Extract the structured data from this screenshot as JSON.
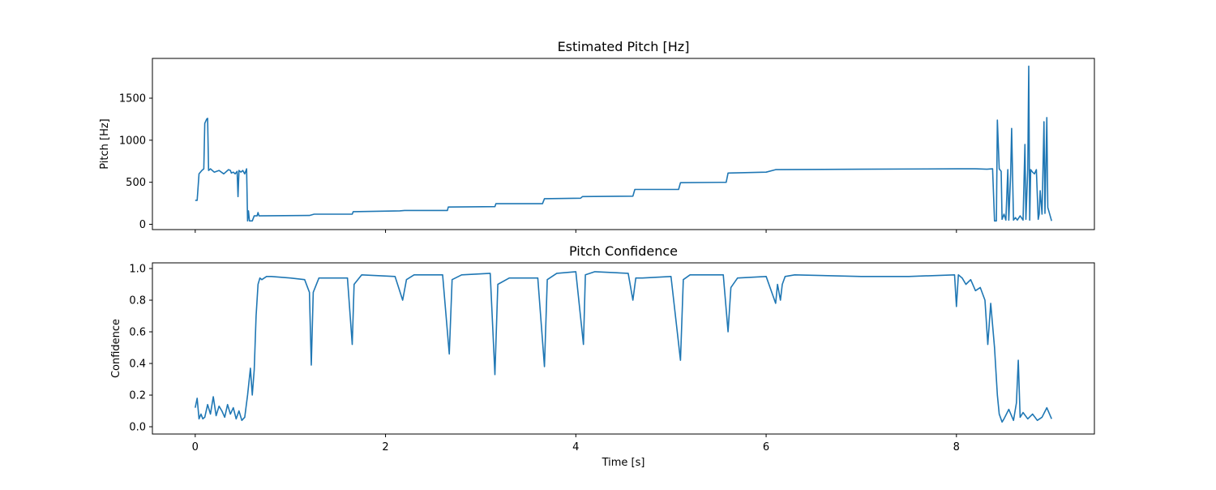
{
  "chart_data": [
    {
      "type": "line",
      "title": "Estimated Pitch [Hz]",
      "y_label": "Pitch [Hz]",
      "x": [
        0,
        0.02,
        0.04,
        0.07,
        0.09,
        0.1,
        0.12,
        0.13,
        0.14,
        0.16,
        0.2,
        0.25,
        0.3,
        0.35,
        0.37,
        0.38,
        0.4,
        0.42,
        0.44,
        0.45,
        0.46,
        0.48,
        0.5,
        0.52,
        0.54,
        0.55,
        0.56,
        0.57,
        0.6,
        0.62,
        0.65,
        0.66,
        0.67,
        1.2,
        1.25,
        1.65,
        1.66,
        2.15,
        2.2,
        2.65,
        2.66,
        3.15,
        3.16,
        3.65,
        3.67,
        4.05,
        4.07,
        4.6,
        4.62,
        5.08,
        5.1,
        5.58,
        5.6,
        6.0,
        6.1,
        7.0,
        8.0,
        8.2,
        8.32,
        8.38,
        8.4,
        8.42,
        8.43,
        8.45,
        8.47,
        8.48,
        8.5,
        8.52,
        8.54,
        8.55,
        8.57,
        8.58,
        8.6,
        8.62,
        8.64,
        8.67,
        8.7,
        8.72,
        8.73,
        8.75,
        8.76,
        8.77,
        8.78,
        8.8,
        8.82,
        8.84,
        8.86,
        8.87,
        8.88,
        8.9,
        8.92,
        8.93,
        8.95,
        8.96,
        9.0
      ],
      "series": [
        {
          "name": "pitch",
          "color": "#1f77b4",
          "values": [
            285,
            285,
            600,
            640,
            660,
            1200,
            1250,
            1260,
            640,
            660,
            620,
            640,
            600,
            650,
            640,
            610,
            620,
            600,
            630,
            330,
            640,
            620,
            640,
            600,
            660,
            40,
            160,
            40,
            40,
            100,
            100,
            140,
            100,
            105,
            120,
            120,
            150,
            160,
            165,
            165,
            205,
            210,
            245,
            245,
            305,
            310,
            330,
            335,
            415,
            415,
            495,
            500,
            610,
            620,
            650,
            655,
            660,
            660,
            655,
            660,
            40,
            40,
            1240,
            660,
            630,
            60,
            120,
            50,
            650,
            50,
            600,
            1140,
            50,
            80,
            50,
            100,
            50,
            950,
            60,
            650,
            1880,
            50,
            650,
            620,
            600,
            650,
            60,
            120,
            400,
            120,
            1220,
            130,
            1270,
            200,
            40
          ]
        }
      ],
      "xlim": [
        -0.45,
        9.45
      ],
      "xticks": [
        0,
        2,
        4,
        6,
        8
      ],
      "ylim": [
        -63,
        1973
      ],
      "yticks": [
        0,
        500,
        1000,
        1500
      ]
    },
    {
      "type": "line",
      "title": "Pitch Confidence",
      "y_label": "Confidence",
      "x_label": "Time [s]",
      "x": [
        0,
        0.02,
        0.04,
        0.06,
        0.08,
        0.1,
        0.13,
        0.16,
        0.19,
        0.22,
        0.25,
        0.28,
        0.31,
        0.34,
        0.37,
        0.4,
        0.43,
        0.46,
        0.49,
        0.52,
        0.55,
        0.58,
        0.6,
        0.62,
        0.64,
        0.66,
        0.68,
        0.7,
        0.75,
        0.8,
        1.0,
        1.15,
        1.2,
        1.22,
        1.24,
        1.3,
        1.4,
        1.6,
        1.65,
        1.67,
        1.75,
        2.1,
        2.18,
        2.22,
        2.3,
        2.6,
        2.67,
        2.7,
        2.8,
        3.1,
        3.15,
        3.18,
        3.3,
        3.6,
        3.67,
        3.7,
        3.8,
        4.0,
        4.08,
        4.1,
        4.2,
        4.55,
        4.6,
        4.63,
        4.7,
        5.0,
        5.1,
        5.13,
        5.2,
        5.55,
        5.6,
        5.63,
        5.7,
        6.0,
        6.1,
        6.12,
        6.15,
        6.17,
        6.2,
        6.3,
        7.0,
        7.5,
        7.98,
        8.0,
        8.02,
        8.06,
        8.1,
        8.15,
        8.2,
        8.25,
        8.3,
        8.33,
        8.36,
        8.4,
        8.43,
        8.45,
        8.48,
        8.5,
        8.55,
        8.6,
        8.63,
        8.65,
        8.67,
        8.7,
        8.75,
        8.8,
        8.85,
        8.9,
        8.95,
        9.0
      ],
      "series": [
        {
          "name": "confidence",
          "color": "#1f77b4",
          "values": [
            0.12,
            0.18,
            0.05,
            0.08,
            0.05,
            0.06,
            0.14,
            0.08,
            0.19,
            0.07,
            0.13,
            0.1,
            0.06,
            0.14,
            0.08,
            0.12,
            0.05,
            0.1,
            0.04,
            0.06,
            0.2,
            0.37,
            0.2,
            0.36,
            0.7,
            0.9,
            0.94,
            0.93,
            0.95,
            0.95,
            0.94,
            0.93,
            0.85,
            0.39,
            0.85,
            0.94,
            0.94,
            0.94,
            0.52,
            0.9,
            0.96,
            0.95,
            0.8,
            0.93,
            0.96,
            0.96,
            0.46,
            0.93,
            0.96,
            0.97,
            0.33,
            0.9,
            0.94,
            0.94,
            0.38,
            0.93,
            0.97,
            0.98,
            0.52,
            0.96,
            0.98,
            0.97,
            0.8,
            0.94,
            0.94,
            0.95,
            0.42,
            0.93,
            0.96,
            0.96,
            0.6,
            0.88,
            0.94,
            0.95,
            0.78,
            0.9,
            0.8,
            0.9,
            0.95,
            0.96,
            0.95,
            0.95,
            0.96,
            0.76,
            0.96,
            0.94,
            0.9,
            0.93,
            0.86,
            0.88,
            0.8,
            0.52,
            0.78,
            0.5,
            0.2,
            0.08,
            0.03,
            0.05,
            0.11,
            0.04,
            0.15,
            0.42,
            0.06,
            0.09,
            0.05,
            0.08,
            0.04,
            0.06,
            0.12,
            0.05
          ],
          "value_labels": null
        }
      ],
      "xlim": [
        -0.45,
        9.45
      ],
      "xticks": [
        0,
        2,
        4,
        6,
        8
      ],
      "ylim": [
        -0.046,
        1.036
      ],
      "yticks": [
        {
          "value": 0,
          "label": "0.0"
        },
        0.2,
        0.4,
        0.6,
        0.8,
        {
          "value": 1,
          "label": "1.0"
        }
      ]
    }
  ]
}
